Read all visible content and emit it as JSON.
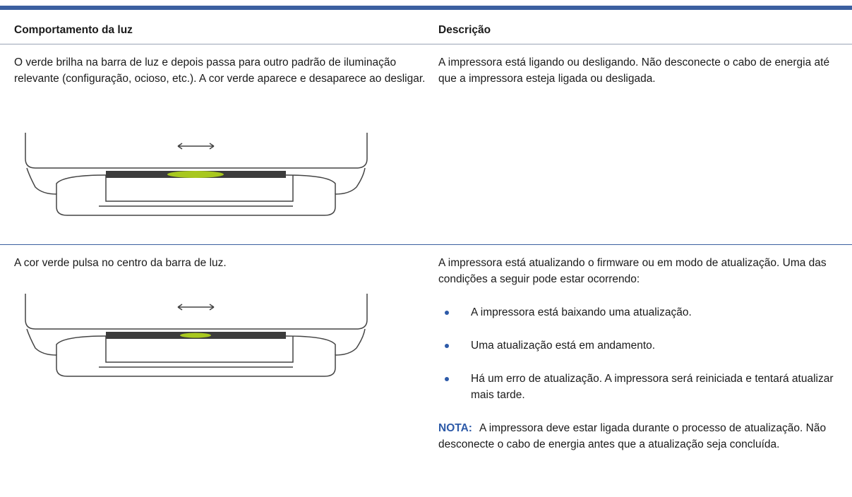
{
  "table": {
    "columns": [
      "Comportamento da luz",
      "Descrição"
    ],
    "rows": [
      {
        "behavior": "O verde brilha na barra de luz e depois passa para outro padrão de iluminação relevante (configuração, ocioso, etc.). A cor verde aparece e desaparece ao desligar.",
        "description": "A impressora está ligando ou desligando. Não desconecte o cabo de energia até que a impressora esteja ligada ou desligada."
      },
      {
        "behavior": "A cor verde pulsa no centro da barra de luz.",
        "description": "A impressora está atualizando o firmware ou em modo de atualização. Uma das condições a seguir pode estar ocorrendo:",
        "bullets": [
          "A impressora está baixando uma atualização.",
          "Uma atualização está em andamento.",
          "Há um erro de atualização. A impressora será reiniciada e tentará atualizar mais tarde."
        ],
        "note": {
          "label": "NOTA:",
          "text": "A impressora deve estar ligada durante o processo de atualização. Não desconecte o cabo de energia antes que a atualização seja concluída."
        }
      }
    ]
  }
}
